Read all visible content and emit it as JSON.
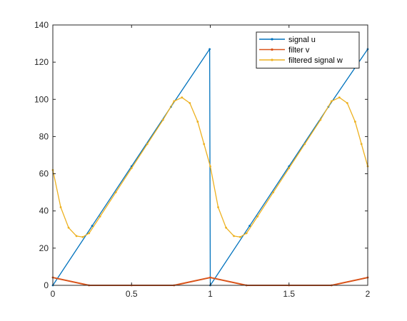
{
  "chart_data": {
    "type": "line",
    "title": "",
    "xlabel": "",
    "ylabel": "",
    "xlim": [
      0,
      2
    ],
    "ylim": [
      0,
      140
    ],
    "xticks": [
      0,
      0.5,
      1,
      1.5,
      2
    ],
    "xtick_labels": [
      "0",
      "0.5",
      "1",
      "1.5",
      "2"
    ],
    "yticks": [
      0,
      20,
      40,
      60,
      80,
      100,
      120,
      140
    ],
    "ytick_labels": [
      "0",
      "20",
      "40",
      "60",
      "80",
      "100",
      "120",
      "140"
    ],
    "grid": false,
    "legend_position": "top-right",
    "series": [
      {
        "name": "signal u",
        "color": "#0072BD",
        "x": [
          0,
          0.25,
          0.5,
          0.75,
          0.996,
          1.0,
          1.25,
          1.5,
          1.75,
          2.0
        ],
        "y": [
          0,
          32,
          64,
          96,
          127,
          0,
          32,
          64,
          96,
          127
        ]
      },
      {
        "name": "filter v",
        "color": "#D95319",
        "x": [
          0,
          0.23,
          0.5,
          0.77,
          1.0,
          1.23,
          1.5,
          1.77,
          2.0
        ],
        "y": [
          4.2,
          0,
          0,
          0,
          4.2,
          0,
          0,
          0,
          4.2
        ]
      },
      {
        "name": "filtered signal w",
        "color": "#EDB120",
        "x": [
          0,
          0.05,
          0.1,
          0.15,
          0.19,
          0.23,
          0.3,
          0.4,
          0.5,
          0.6,
          0.7,
          0.77,
          0.82,
          0.87,
          0.92,
          0.96,
          1.0,
          1.05,
          1.1,
          1.15,
          1.19,
          1.23,
          1.3,
          1.4,
          1.5,
          1.6,
          1.7,
          1.77,
          1.82,
          1.87,
          1.92,
          1.96,
          2.0
        ],
        "y": [
          62,
          42,
          31,
          26.5,
          26,
          28,
          37,
          50,
          63,
          76,
          89,
          99,
          101,
          98,
          88,
          76,
          64,
          42,
          31,
          26.5,
          26,
          28,
          37,
          50,
          63,
          76,
          89,
          99,
          101,
          98,
          88,
          76,
          64
        ]
      }
    ]
  }
}
